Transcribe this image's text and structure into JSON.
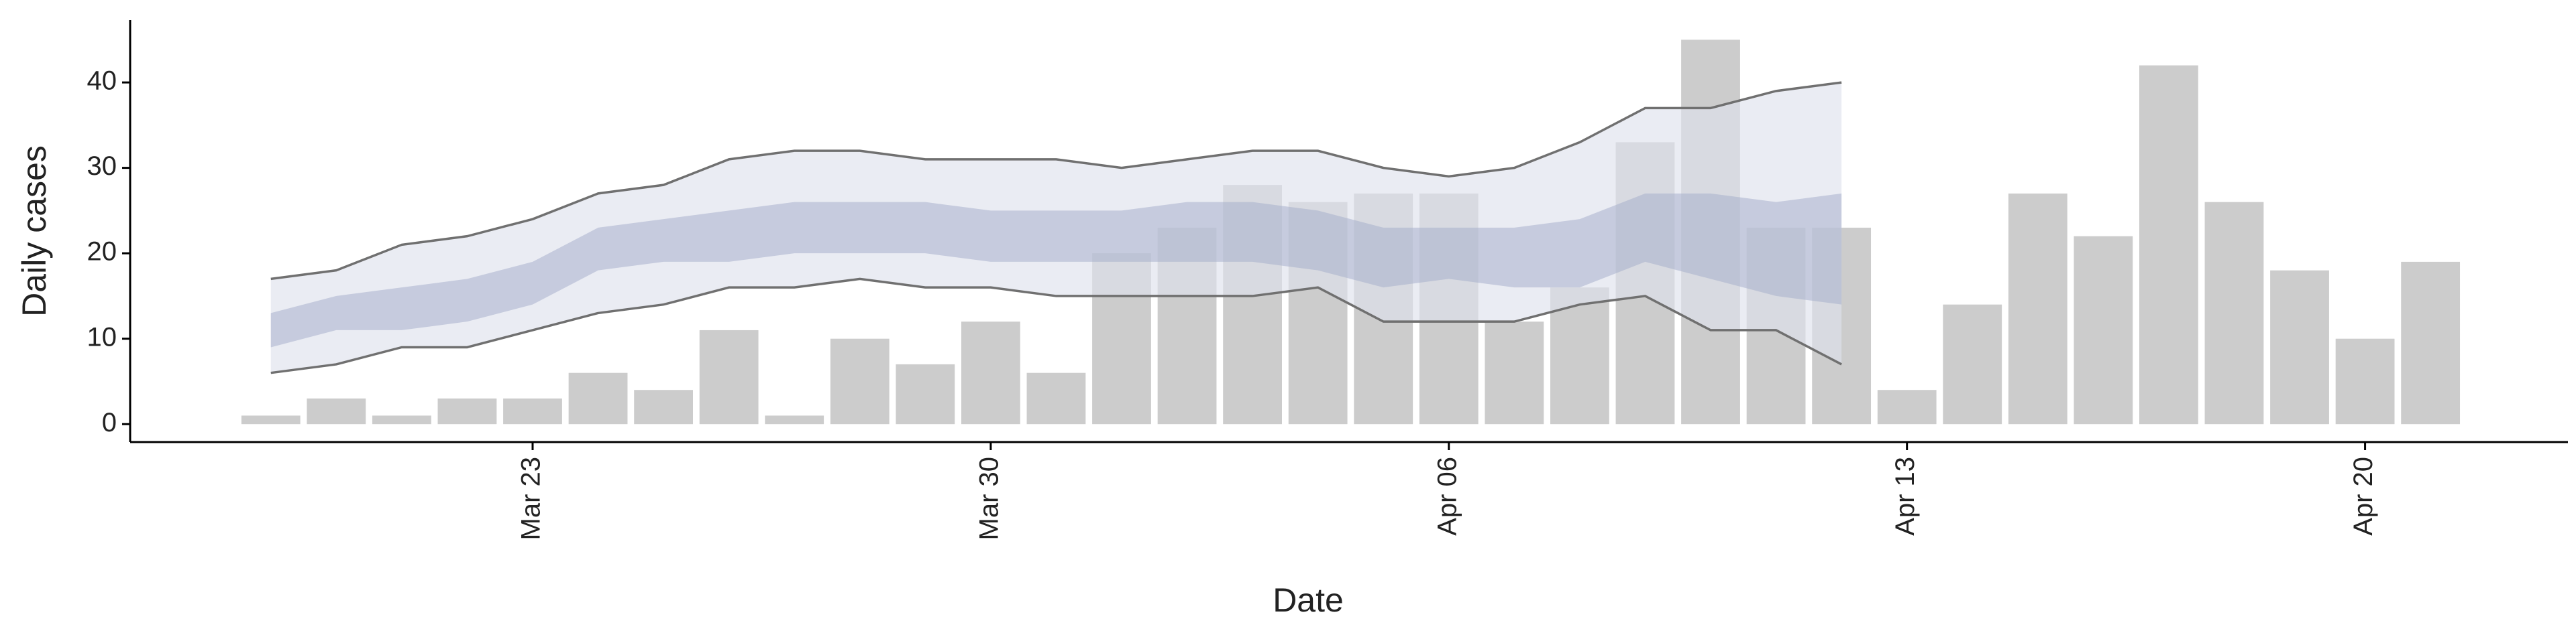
{
  "chart_data": {
    "type": "bar",
    "x_label": "Date",
    "y_label": "Daily cases",
    "categories": [
      null,
      null,
      null,
      null,
      "Mar 23",
      null,
      null,
      null,
      null,
      null,
      null,
      "Mar 30",
      null,
      null,
      null,
      null,
      null,
      null,
      "Apr 06",
      null,
      null,
      null,
      null,
      null,
      null,
      "Apr 13",
      null,
      null,
      null,
      null,
      null,
      null,
      "Apr 20",
      null
    ],
    "values": [
      1,
      3,
      1,
      3,
      3,
      6,
      4,
      11,
      1,
      10,
      7,
      12,
      6,
      20,
      23,
      28,
      26,
      27,
      27,
      12,
      16,
      33,
      45,
      23,
      23,
      4,
      14,
      27,
      22,
      42,
      26,
      18,
      10,
      19
    ],
    "color": "#cccccc",
    "outer_upper": [
      17,
      18,
      21,
      22,
      24,
      27,
      28,
      31,
      32,
      32,
      31,
      31,
      31,
      30,
      31,
      32,
      32,
      30,
      29,
      30,
      33,
      37,
      37,
      39,
      40,
      null,
      null,
      null,
      null,
      null,
      null,
      null,
      null,
      null
    ],
    "outer_lower": [
      6,
      7,
      9,
      9,
      11,
      13,
      14,
      16,
      16,
      17,
      16,
      16,
      15,
      15,
      15,
      15,
      16,
      12,
      12,
      12,
      14,
      15,
      11,
      11,
      7,
      null,
      null,
      null,
      null,
      null,
      null,
      null,
      null,
      null
    ],
    "inner_upper": [
      13,
      15,
      16,
      17,
      19,
      23,
      24,
      25,
      26,
      26,
      26,
      25,
      25,
      25,
      26,
      26,
      25,
      23,
      23,
      23,
      24,
      27,
      27,
      26,
      27,
      null,
      null,
      null,
      null,
      null,
      null,
      null,
      null,
      null
    ],
    "inner_lower": [
      9,
      11,
      11,
      12,
      14,
      18,
      19,
      19,
      20,
      20,
      20,
      19,
      19,
      19,
      19,
      19,
      18,
      16,
      17,
      16,
      16,
      19,
      17,
      15,
      14,
      null,
      null,
      null,
      null,
      null,
      null,
      null,
      null,
      null
    ],
    "outer_color": "#dfe2ec",
    "inner_color": "#a7b0cc",
    "line_color": "#707070",
    "xlim": [
      -2.15,
      35.1
    ],
    "ylim": [
      -2.1,
      47.3
    ],
    "yticks": [
      0,
      10,
      20,
      30,
      40
    ],
    "grid": false
  }
}
